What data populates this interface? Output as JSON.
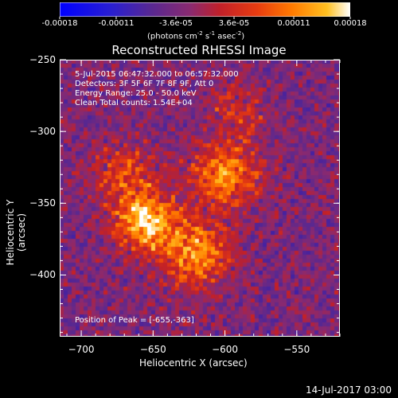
{
  "colorbar": {
    "tick_labels": [
      "-0.00018",
      "-0.00011",
      "-3.6e-05",
      "3.6e-05",
      "0.00011",
      "0.00018"
    ],
    "tick_values": [
      -0.00018,
      -0.00011,
      -3.6e-05,
      3.6e-05,
      0.00011,
      0.00018
    ],
    "range": [
      -0.00018,
      0.00018
    ],
    "unit_prefix": "(photons cm",
    "unit_exp1": "-2",
    "unit_mid": " s",
    "unit_exp2": "-1",
    "unit_mid2": " asec",
    "unit_exp3": "-2",
    "unit_suffix": ")"
  },
  "chart_data": {
    "type": "heatmap",
    "title": "Reconstructed RHESSI Image",
    "xlabel": "Heliocentric X (arcsec)",
    "ylabel": "Heliocentric Y (arcsec)",
    "xlim": [
      -715,
      -520
    ],
    "ylim": [
      -443,
      -250
    ],
    "x_ticks": [
      -700,
      -650,
      -600,
      -550
    ],
    "x_tick_labels": [
      "−700",
      "−650",
      "−600",
      "−550"
    ],
    "y_ticks": [
      -250,
      -300,
      -350,
      -400
    ],
    "y_tick_labels": [
      "−250",
      "−300",
      "−350",
      "−400"
    ],
    "colormap": [
      "#0000ff",
      "#3b1faa",
      "#5a2890",
      "#8a2a70",
      "#c0202a",
      "#e83c10",
      "#ff7a00",
      "#ffc020",
      "#ffffff"
    ],
    "grid": false,
    "peak": [
      -655,
      -363
    ],
    "sources": [
      {
        "x": -655,
        "y": -363,
        "amp": 1.0,
        "sigma": 14
      },
      {
        "x": -620,
        "y": -385,
        "amp": 0.75,
        "sigma": 16
      },
      {
        "x": -600,
        "y": -330,
        "amp": 0.7,
        "sigma": 16
      },
      {
        "x": -670,
        "y": -330,
        "amp": 0.45,
        "sigma": 15
      },
      {
        "x": -590,
        "y": -285,
        "amp": 0.35,
        "sigma": 12
      }
    ],
    "annotations": [
      "5-Jul-2015 06:47:32.000 to 06:57:32.000",
      "Detectors: 3F 5F 6F 7F 8F 9F, Att 0",
      "Energy Range: 25.0 - 50.0 keV",
      "Clean     Total counts: 1.54E+04"
    ],
    "peak_label": "Position of Peak = [-655,-363]"
  },
  "footer": {
    "date": "14-Jul-2017 03:00"
  }
}
